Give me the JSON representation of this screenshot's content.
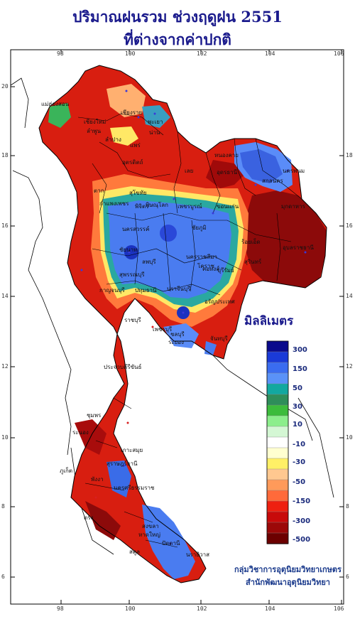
{
  "title": {
    "line1": "ปริมาณฝนรวม ช่วงฤดูฝน 2551",
    "line2": "ที่ต่างจากค่าปกติ"
  },
  "axes": {
    "top_ticks": [
      "98",
      "100",
      "102",
      "104",
      "106"
    ],
    "bottom_ticks": [
      "98",
      "100",
      "102",
      "104",
      "106"
    ],
    "left_ticks": [
      "20",
      "18",
      "16",
      "14",
      "12",
      "10",
      "8",
      "6"
    ],
    "right_ticks": [
      "18",
      "16",
      "14",
      "12",
      "10",
      "8",
      "6"
    ]
  },
  "legend": {
    "title": "มิลลิเมตร",
    "labels": [
      "300",
      "150",
      "50",
      "30",
      "10",
      "-10",
      "-30",
      "-50",
      "-150",
      "-300",
      "-500"
    ],
    "colors": [
      "#0a0a8c",
      "#1a3ad8",
      "#3a6cf0",
      "#5a92f8",
      "#12a8a0",
      "#2e8e5a",
      "#3cbc3c",
      "#8cee8c",
      "#d4f7d4",
      "#ffffff",
      "#ffffd0",
      "#fff066",
      "#ffc890",
      "#ff9a5a",
      "#ff6a3a",
      "#ee2010",
      "#c80a0a",
      "#9c0808",
      "#6c0000"
    ]
  },
  "cities": [
    "เชียงราย",
    "แม่ฮ่องสอน",
    "เชียงใหม่",
    "ลำพูน",
    "ลำปาง",
    "พะเยา",
    "น่าน",
    "แพร่",
    "อุตรดิตถ์",
    "ตาก",
    "สุโขทัย",
    "พิษณุโลก",
    "หนองคาย",
    "อุดรธานี",
    "สกลนคร",
    "นครพนม",
    "เลย",
    "กำแพงเพชร",
    "พิจิตร",
    "เพชรบูรณ์",
    "ขอนแก่น",
    "มุกดาหาร",
    "นครสวรรค์",
    "ชัยภูมิ",
    "ร้อยเอ็ด",
    "อุบลราชธานี",
    "ชัยนาท",
    "ลพบุรี",
    "นครราชสีมา",
    "สุรินทร์",
    "สุพรรณบุรี",
    "กาญจนบุรี",
    "ปทุมธานี",
    "ปราจีนบุรี",
    "โคราช",
    "บุรีรัมย์",
    "อรัญประเทศ",
    "ราชบุรี",
    "เพชรบุรี",
    "ชลบุรี",
    "ระยอง",
    "จันทบุรี",
    "ประจวบคีรีขันธ์",
    "ชุมพร",
    "ระนอง",
    "เกาะสมุย",
    "สุราษฎร์ธานี",
    "ภูเก็ต",
    "พังงา",
    "นครศรีธรรมราช",
    "ตรัง",
    "สงขลา",
    "หาดใหญ่",
    "ปัตตานี",
    "นราธิวาส",
    "สตูล",
    "คอหงส์"
  ],
  "credit": {
    "line1": "กลุ่มวิชาการอุตุนิยมวิทยาเกษตร",
    "line2": "สำนักพัฒนาอุตุนิยมวิทยา"
  }
}
